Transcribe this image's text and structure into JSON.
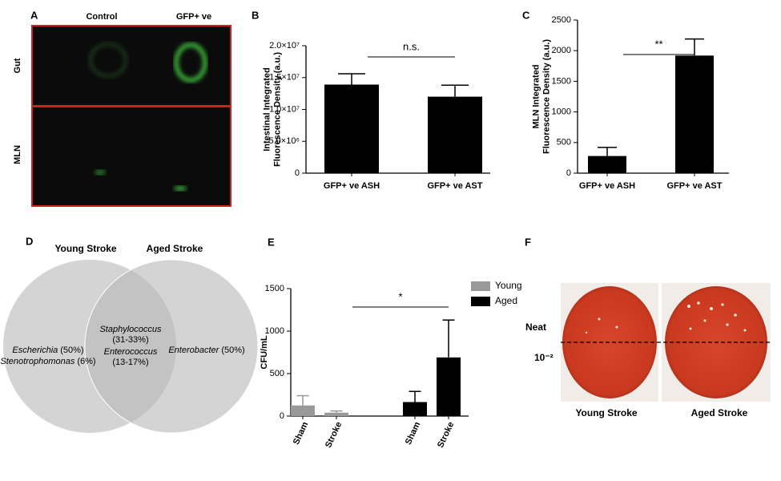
{
  "panel_a": {
    "panel": "A",
    "columns": [
      "Control",
      "GFP+ ve"
    ],
    "rows": [
      "Gut",
      "MLN"
    ]
  },
  "chart_data": [
    {
      "type": "bar",
      "panel": "B",
      "ylabel_lines": [
        "Intestinal Integrated",
        "Fluorescence Density (a.u.)"
      ],
      "categories": [
        "GFP+ ve ASH",
        "GFP+ ve AST"
      ],
      "values": [
        13900000,
        12000000
      ],
      "errors": [
        1700000,
        1800000
      ],
      "color": "#000000",
      "ylim": [
        0,
        20000000
      ],
      "yticks": [
        0,
        {
          "value": 5000000,
          "label": "5.0×10⁶"
        },
        {
          "value": 10000000,
          "label": "1.0×10⁷"
        },
        {
          "value": 15000000,
          "label": "1.5×10⁷"
        },
        {
          "value": 20000000,
          "label": "2.0×10⁷"
        }
      ],
      "annotation": "n.s."
    },
    {
      "type": "bar",
      "panel": "C",
      "ylabel_lines": [
        "MLN Integrated",
        "Fluorescence Density (a.u.)"
      ],
      "categories": [
        "GFP+ ve ASH",
        "GFP+ ve AST"
      ],
      "values": [
        280,
        1920
      ],
      "errors": [
        140,
        270
      ],
      "color": "#000000",
      "ylim": [
        0,
        2500
      ],
      "yticks": [
        0,
        500,
        1000,
        1500,
        2000,
        2500
      ],
      "annotation": "**"
    },
    {
      "type": "bar",
      "panel": "E",
      "ylabel_lines": [
        "CFU/mL"
      ],
      "categories": [
        "Sham",
        "Stroke",
        "Sham",
        "Stroke"
      ],
      "series": [
        {
          "name": "Young",
          "color": "#999999",
          "values": [
            125,
            40,
            null,
            null
          ],
          "errors": [
            115,
            20,
            null,
            null
          ]
        },
        {
          "name": "Aged",
          "color": "#000000",
          "values": [
            null,
            null,
            165,
            690
          ],
          "errors": [
            null,
            null,
            125,
            440
          ]
        }
      ],
      "ylim": [
        0,
        1500
      ],
      "yticks": [
        0,
        500,
        1000,
        1500
      ],
      "annotation": "*"
    }
  ],
  "venn": {
    "panel": "D",
    "left_title": "Young Stroke",
    "right_title": "Aged Stroke",
    "left": [
      {
        "name": "Escherichia",
        "pct": "(50%)"
      },
      {
        "name": "Stenotrophomonas",
        "pct": "(6%)"
      }
    ],
    "middle": [
      {
        "name": "Staphylococcus",
        "pct": "(31-33%)"
      },
      {
        "name": "Enterococcus",
        "pct": "(13-17%)"
      }
    ],
    "right": [
      {
        "name": "Enterobacter",
        "pct": "(50%)"
      }
    ]
  },
  "panel_f": {
    "panel": "F",
    "neat": "Neat",
    "dilution": "10⁻²",
    "labels": [
      "Young Stroke",
      "Aged Stroke"
    ]
  }
}
